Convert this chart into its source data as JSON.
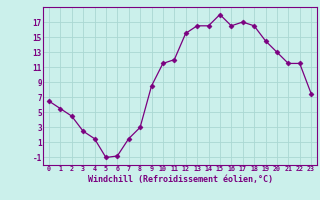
{
  "x": [
    0,
    1,
    2,
    3,
    4,
    5,
    6,
    7,
    8,
    9,
    10,
    11,
    12,
    13,
    14,
    15,
    16,
    17,
    18,
    19,
    20,
    21,
    22,
    23
  ],
  "y": [
    6.5,
    5.5,
    4.5,
    2.5,
    1.5,
    -1.0,
    -0.8,
    1.5,
    3.0,
    8.5,
    11.5,
    12.0,
    15.5,
    16.5,
    16.5,
    18.0,
    16.5,
    17.0,
    16.5,
    14.5,
    13.0,
    11.5,
    11.5,
    7.5
  ],
  "line_color": "#7b0080",
  "marker": "D",
  "marker_size": 2.5,
  "bg_color": "#cbf0eb",
  "grid_color": "#aad8d3",
  "xlabel": "Windchill (Refroidissement éolien,°C)",
  "yticks": [
    -1,
    1,
    3,
    5,
    7,
    9,
    11,
    13,
    15,
    17
  ],
  "xticks": [
    0,
    1,
    2,
    3,
    4,
    5,
    6,
    7,
    8,
    9,
    10,
    11,
    12,
    13,
    14,
    15,
    16,
    17,
    18,
    19,
    20,
    21,
    22,
    23
  ],
  "xlim": [
    -0.5,
    23.5
  ],
  "ylim": [
    -2.0,
    19.0
  ],
  "tick_color": "#7b0080",
  "label_color": "#7b0080",
  "spine_color": "#7b0080"
}
